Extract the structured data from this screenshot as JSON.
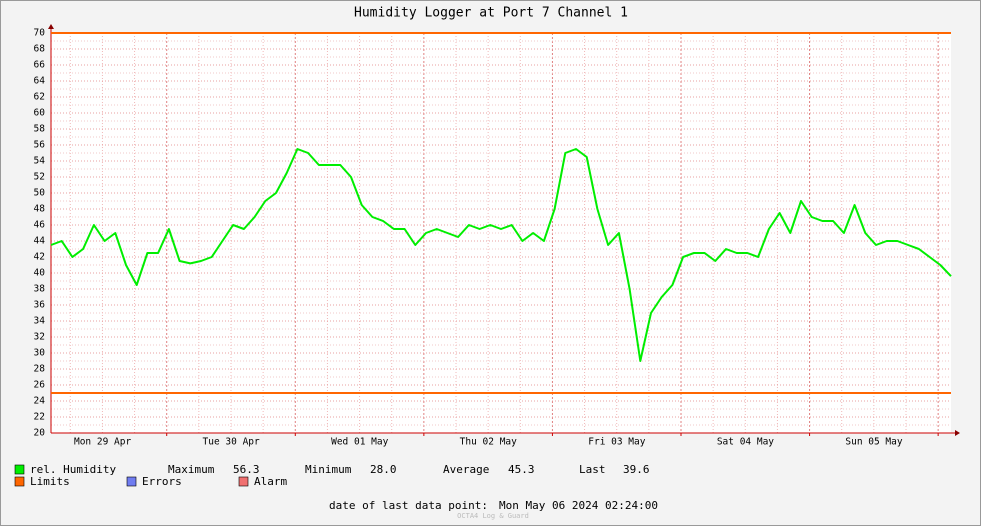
{
  "chart_data": {
    "type": "line",
    "title": "Humidity Logger at Port 7 Channel 1",
    "categories": [
      null,
      null,
      null,
      null,
      null,
      "Mon 29 Apr",
      null,
      null,
      null,
      null,
      null,
      null,
      null,
      null,
      null,
      null,
      null,
      "Tue 30 Apr",
      null,
      null,
      null,
      null,
      null,
      null,
      null,
      null,
      null,
      null,
      null,
      "Wed 01 May",
      null,
      null,
      null,
      null,
      null,
      null,
      null,
      null,
      null,
      null,
      null,
      "Thu 02 May",
      null,
      null,
      null,
      null,
      null,
      null,
      null,
      null,
      null,
      null,
      null,
      "Fri 03 May",
      null,
      null,
      null,
      null,
      null,
      null,
      null,
      null,
      null,
      null,
      null,
      "Sat 04 May",
      null,
      null,
      null,
      null,
      null,
      null,
      null,
      null,
      null,
      null,
      null,
      "Sun 05 May",
      null,
      null,
      null,
      null,
      null,
      null,
      null
    ],
    "series": [
      {
        "name": "rel. Humidity",
        "color": "#00ee00",
        "values": [
          43.5,
          44,
          42,
          43,
          46,
          44,
          45,
          41,
          38.5,
          42.5,
          42.5,
          45.5,
          41.5,
          41.2,
          41.5,
          42,
          44,
          46,
          45.5,
          47,
          49,
          50,
          52.5,
          55.5,
          55,
          53.5,
          53.5,
          53.5,
          52,
          48.5,
          47,
          46.5,
          45.5,
          45.5,
          43.5,
          45,
          45.5,
          45,
          44.5,
          46,
          45.5,
          46,
          45.5,
          46,
          44,
          45,
          44,
          48,
          55,
          55.5,
          54.5,
          48,
          43.5,
          45,
          38,
          29,
          35,
          37,
          38.5,
          42,
          42.5,
          42.5,
          41.5,
          43,
          42.5,
          42.5,
          42,
          45.5,
          47.5,
          45,
          49,
          47,
          46.5,
          46.5,
          45,
          48.5,
          45,
          43.5,
          44,
          44,
          43.5,
          43,
          42,
          41,
          39.6
        ]
      }
    ],
    "limits": {
      "name": "Limits",
      "color": "#ff6600",
      "values": [
        70,
        25
      ]
    },
    "legend_extra": [
      {
        "name": "Errors",
        "color": "#6f7cf0"
      },
      {
        "name": "Alarm",
        "color": "#f07070"
      }
    ],
    "stats": [
      {
        "label": "Maximum",
        "value": "56.3"
      },
      {
        "label": "Minimum",
        "value": "28.0"
      },
      {
        "label": "Average",
        "value": "45.3"
      },
      {
        "label": "Last",
        "value": "39.6"
      }
    ],
    "footer": {
      "label": "date of last data point:",
      "value": "Mon May 06 2024 02:24:00"
    },
    "watermark": "OCTA4 Log & Guard",
    "ylim": [
      20,
      70
    ],
    "yticks": [
      20,
      22,
      24,
      26,
      28,
      30,
      32,
      34,
      36,
      38,
      40,
      42,
      44,
      46,
      48,
      50,
      52,
      54,
      56,
      58,
      60,
      62,
      64,
      66,
      68,
      70
    ],
    "grid": true
  }
}
